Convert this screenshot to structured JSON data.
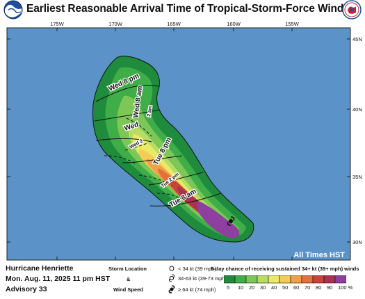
{
  "header": {
    "title": "Earliest Reasonable Arrival Time of Tropical-Storm-Force Winds",
    "left_logo": "noaa-logo",
    "right_logo": "nws-logo"
  },
  "map": {
    "lon_labels": [
      "175W",
      "170W",
      "165W",
      "160W",
      "155W"
    ],
    "lat_labels": [
      "45N",
      "40N",
      "35N",
      "30N"
    ],
    "ocean_color": "#5b93c8",
    "time_labels": [
      "Wed 8 pm",
      "Wed 8 am",
      "Wed",
      "2 am",
      "Wed 2",
      "Tue 8 pm",
      "Tue 2 pm",
      "Tue 8 am"
    ],
    "time_note": "All Times HST"
  },
  "storm": {
    "name": "Hurricane Henriette",
    "datetime": "Mon. Aug. 11, 2025  11 pm HST",
    "advisory": "Advisory 33"
  },
  "legend": {
    "storm_location_label": "Storm Location",
    "ampersand": "&",
    "wind_speed_label": "Wind Speed",
    "symbols": [
      "< 34 kt (39 mph)",
      "34-63 kt (39-73 mph)",
      "≥ 64 kt (74 mph)"
    ],
    "scale_title": "5-day chance of receiving sustained 34+ kt (39+ mph) winds",
    "scale_labels": [
      "5",
      "10",
      "20",
      "30",
      "40",
      "50",
      "60",
      "70",
      "80",
      "90",
      "100 %"
    ],
    "scale_colors": [
      "#1e8c3c",
      "#3fae49",
      "#7dc757",
      "#b9dd63",
      "#e9ea6a",
      "#f5cc55",
      "#f0a048",
      "#e2713c",
      "#c84338",
      "#a8324f",
      "#8e3fa0"
    ]
  }
}
